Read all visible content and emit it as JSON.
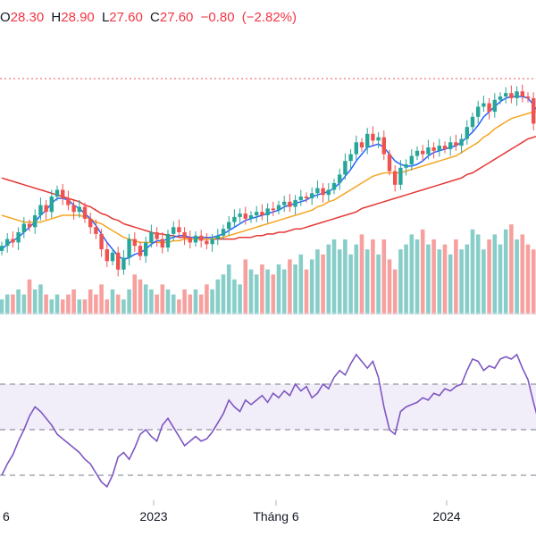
{
  "header": {
    "open_label": "O",
    "open": "28.30",
    "high_label": "H",
    "high": "28.90",
    "low_label": "L",
    "low": "27.60",
    "close_label": "C",
    "close": "27.60",
    "change": "−0.80",
    "change_pct": "(−2.82%)"
  },
  "colors": {
    "up": "#26a69a",
    "down": "#ef5350",
    "ma_fast": "#2962ff",
    "ma_mid": "#f5a623",
    "ma_slow": "#e53935",
    "rsi": "#7e57c2"
  },
  "chart_data": [
    {
      "type": "candlestick",
      "title": "",
      "x_labels": [
        "6",
        "2023",
        "Tháng 6",
        "2024"
      ],
      "series": [
        {
          "role": "close",
          "values": [
            21.2,
            21.6,
            21.4,
            22.0,
            22.5,
            22.3,
            23.0,
            23.6,
            23.2,
            24.1,
            24.5,
            24.0,
            23.6,
            23.2,
            23.5,
            22.8,
            22.3,
            21.9,
            21.0,
            20.3,
            20.8,
            19.8,
            20.5,
            21.6,
            21.2,
            20.6,
            21.4,
            22.0,
            21.6,
            21.1,
            21.9,
            22.3,
            22.0,
            21.7,
            21.4,
            21.8,
            21.5,
            21.3,
            21.6,
            21.8,
            22.2,
            22.6,
            22.9,
            23.1,
            22.8,
            23.0,
            23.2,
            23.0,
            23.4,
            23.3,
            23.6,
            23.8,
            23.5,
            23.9,
            24.1,
            24.0,
            24.3,
            24.6,
            24.2,
            24.5,
            24.9,
            25.4,
            26.2,
            26.6,
            27.3,
            27.0,
            27.8,
            27.4,
            27.6,
            26.6,
            25.6,
            24.8,
            25.8,
            26.0,
            26.5,
            26.8,
            26.6,
            27.0,
            26.8,
            27.1,
            26.9,
            27.3,
            27.1,
            27.5,
            28.2,
            28.8,
            29.4,
            29.6,
            29.1,
            29.8,
            30.0,
            30.2,
            29.9,
            30.3,
            30.0,
            29.9,
            28.4,
            27.6
          ]
        },
        {
          "role": "ma_fast",
          "values": [
            21.0,
            21.3,
            21.5,
            21.7,
            22.0,
            22.3,
            22.6,
            23.0,
            23.3,
            23.7,
            24.0,
            24.0,
            23.9,
            23.6,
            23.4,
            23.1,
            22.8,
            22.4,
            21.9,
            21.4,
            21.0,
            20.6,
            20.4,
            20.5,
            20.7,
            20.8,
            21.0,
            21.3,
            21.5,
            21.5,
            21.6,
            21.7,
            21.8,
            21.8,
            21.7,
            21.7,
            21.7,
            21.7,
            21.7,
            21.8,
            21.9,
            22.1,
            22.3,
            22.5,
            22.7,
            22.8,
            22.9,
            23.0,
            23.1,
            23.2,
            23.3,
            23.5,
            23.6,
            23.7,
            23.8,
            23.9,
            24.1,
            24.2,
            24.3,
            24.4,
            24.6,
            24.9,
            25.3,
            25.7,
            26.2,
            26.6,
            27.0,
            27.1,
            27.2,
            27.0,
            26.6,
            26.2,
            26.0,
            25.9,
            25.9,
            26.0,
            26.2,
            26.5,
            26.7,
            26.8,
            26.9,
            27.0,
            27.1,
            27.3,
            27.6,
            27.9,
            28.3,
            28.8,
            29.1,
            29.4,
            29.7,
            29.9,
            30.0,
            30.0,
            30.0,
            29.9,
            29.5,
            29.0
          ]
        },
        {
          "role": "ma_mid",
          "values": [
            23.0,
            22.9,
            22.8,
            22.7,
            22.6,
            22.6,
            22.6,
            22.6,
            22.7,
            22.8,
            22.9,
            23.0,
            23.0,
            23.0,
            23.0,
            22.9,
            22.8,
            22.6,
            22.5,
            22.3,
            22.1,
            21.9,
            21.7,
            21.6,
            21.5,
            21.4,
            21.4,
            21.4,
            21.4,
            21.4,
            21.4,
            21.5,
            21.5,
            21.6,
            21.6,
            21.6,
            21.6,
            21.6,
            21.6,
            21.7,
            21.7,
            21.8,
            21.9,
            22.0,
            22.1,
            22.2,
            22.3,
            22.4,
            22.5,
            22.6,
            22.7,
            22.8,
            22.9,
            23.0,
            23.1,
            23.2,
            23.3,
            23.5,
            23.6,
            23.8,
            23.9,
            24.1,
            24.3,
            24.5,
            24.7,
            24.9,
            25.1,
            25.3,
            25.4,
            25.5,
            25.5,
            25.5,
            25.5,
            25.6,
            25.7,
            25.8,
            25.9,
            26.0,
            26.1,
            26.2,
            26.3,
            26.4,
            26.5,
            26.7,
            26.9,
            27.1,
            27.3,
            27.6,
            27.8,
            28.1,
            28.3,
            28.5,
            28.7,
            28.8,
            28.9,
            29.0,
            29.1,
            29.1
          ]
        },
        {
          "role": "ma_slow",
          "values": [
            25.2,
            25.1,
            25.0,
            24.9,
            24.8,
            24.7,
            24.6,
            24.5,
            24.4,
            24.3,
            24.2,
            24.1,
            24.0,
            23.9,
            23.8,
            23.6,
            23.5,
            23.3,
            23.1,
            23.0,
            22.8,
            22.7,
            22.5,
            22.4,
            22.3,
            22.2,
            22.1,
            22.0,
            21.9,
            21.9,
            21.8,
            21.8,
            21.7,
            21.7,
            21.7,
            21.7,
            21.6,
            21.6,
            21.6,
            21.6,
            21.6,
            21.6,
            21.6,
            21.7,
            21.7,
            21.7,
            21.8,
            21.8,
            21.9,
            21.9,
            22.0,
            22.0,
            22.1,
            22.2,
            22.2,
            22.3,
            22.4,
            22.5,
            22.6,
            22.7,
            22.8,
            22.9,
            23.0,
            23.1,
            23.2,
            23.4,
            23.5,
            23.6,
            23.7,
            23.8,
            23.9,
            24.0,
            24.1,
            24.2,
            24.3,
            24.4,
            24.5,
            24.6,
            24.7,
            24.8,
            24.9,
            25.0,
            25.1,
            25.2,
            25.4,
            25.5,
            25.7,
            25.9,
            26.1,
            26.3,
            26.5,
            26.7,
            26.9,
            27.1,
            27.3,
            27.5,
            27.6,
            27.7
          ]
        },
        {
          "role": "volume",
          "values": [
            3,
            4,
            4,
            5,
            4,
            7,
            5,
            6,
            4,
            3,
            4,
            3,
            4,
            5,
            3,
            3,
            5,
            4,
            6,
            3,
            5,
            4,
            3,
            5,
            8,
            7,
            6,
            5,
            4,
            6,
            5,
            4,
            3,
            5,
            4,
            5,
            4,
            6,
            5,
            7,
            8,
            10,
            7,
            6,
            11,
            9,
            8,
            10,
            9,
            8,
            10,
            9,
            11,
            10,
            12,
            9,
            11,
            13,
            12,
            14,
            15,
            13,
            15,
            12,
            14,
            16,
            13,
            15,
            12,
            15,
            11,
            9,
            13,
            14,
            16,
            15,
            17,
            14,
            15,
            13,
            14,
            12,
            15,
            13,
            14,
            17,
            16,
            13,
            15,
            16,
            14,
            17,
            18,
            15,
            16,
            14,
            13,
            15
          ]
        },
        {
          "role": "rsi",
          "values": [
            30,
            35,
            39,
            45,
            50,
            56,
            60,
            58,
            55,
            52,
            48,
            46,
            44,
            42,
            40,
            37,
            35,
            31,
            27,
            25,
            30,
            38,
            40,
            37,
            42,
            48,
            50,
            47,
            45,
            52,
            55,
            51,
            47,
            43,
            45,
            47,
            45,
            46,
            49,
            53,
            57,
            63,
            60,
            58,
            63,
            61,
            63,
            65,
            62,
            66,
            64,
            67,
            65,
            70,
            67,
            69,
            64,
            66,
            70,
            68,
            73,
            76,
            74,
            79,
            83,
            80,
            77,
            80,
            73,
            60,
            50,
            48,
            58,
            60,
            61,
            62,
            64,
            63,
            66,
            65,
            68,
            67,
            69,
            70,
            76,
            81,
            80,
            76,
            78,
            77,
            81,
            82,
            81,
            83,
            77,
            72,
            62,
            53
          ]
        }
      ]
    }
  ]
}
